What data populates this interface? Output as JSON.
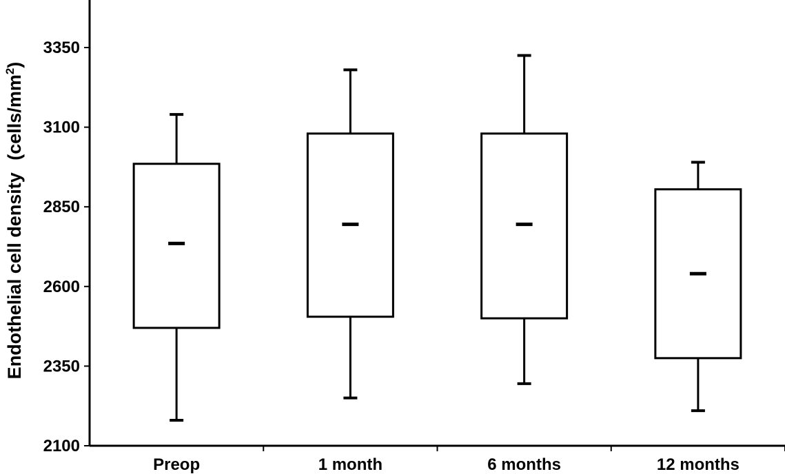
{
  "chart_data": {
    "type": "box",
    "ylabel": "Endothelial cell density",
    "ylabel_unit": "(cells/mm",
    "ylabel_unit_sup": "2",
    "ylabel_unit_close": ")",
    "ylim": [
      2100,
      3500
    ],
    "yticks": [
      2100,
      2350,
      2600,
      2850,
      3100,
      3350
    ],
    "ytick_labels": [
      "2100",
      "2350",
      "2600",
      "2850",
      "3100",
      "3350"
    ],
    "categories": [
      "Preop",
      "1 month",
      "6 months",
      "12 months"
    ],
    "boxes": [
      {
        "category": "Preop",
        "min": 2180,
        "q1": 2470,
        "median": 2735,
        "q3": 2985,
        "max": 3140
      },
      {
        "category": "1 month",
        "min": 2250,
        "q1": 2505,
        "median": 2795,
        "q3": 3080,
        "max": 3280
      },
      {
        "category": "6 months",
        "min": 2295,
        "q1": 2500,
        "median": 2795,
        "q3": 3080,
        "max": 3325
      },
      {
        "category": "12 months",
        "min": 2210,
        "q1": 2375,
        "median": 2640,
        "q3": 2905,
        "max": 2990
      }
    ],
    "grid": false
  }
}
